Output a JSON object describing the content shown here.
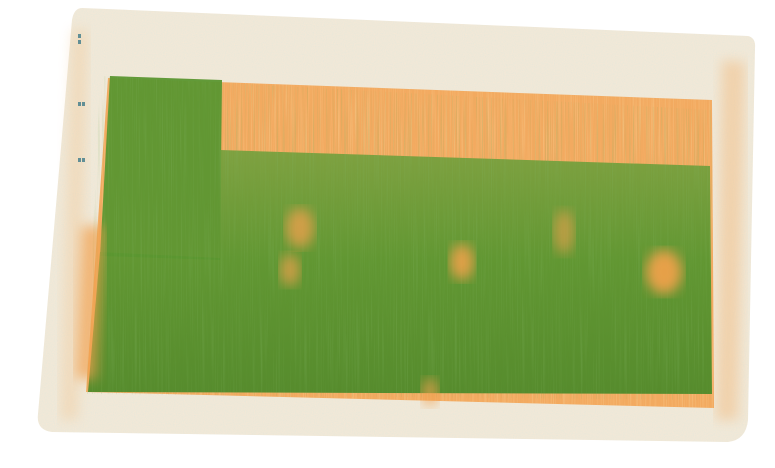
{
  "scene": {
    "description_shown": false,
    "colors": {
      "background": "#ffffff",
      "slab": "#f5e9d6",
      "slab_edge": "#efd3ad",
      "orange": "#f2a04e",
      "orange_deep": "#e8892f",
      "green": "#5f9a35",
      "green_deep": "#4a8527",
      "green_light": "#7aa845",
      "speckle": "#a9d7dd",
      "marker": "#3d7a8a"
    }
  }
}
